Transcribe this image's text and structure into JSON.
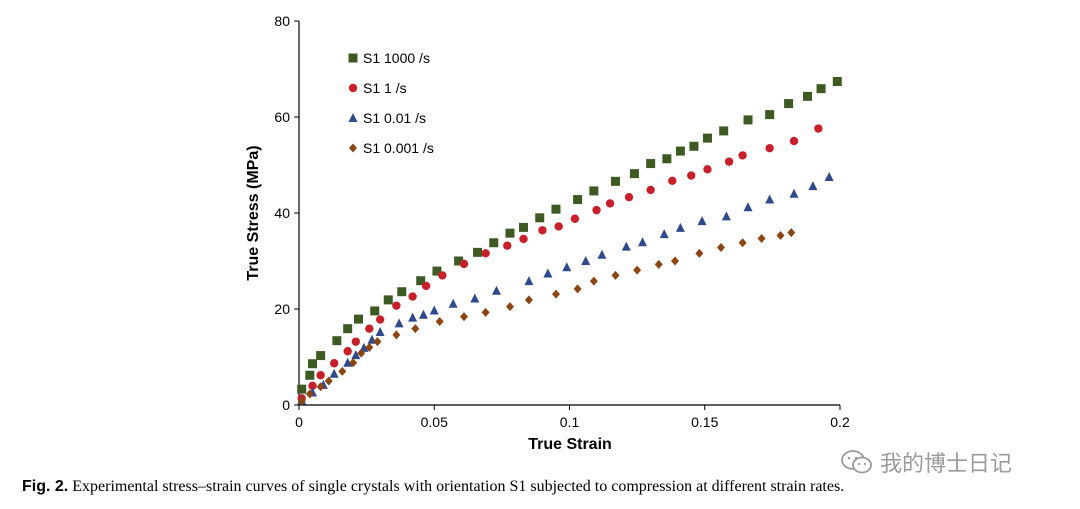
{
  "chart_data": {
    "type": "scatter",
    "title": "",
    "xlabel": "True Strain",
    "ylabel": "True Stress (MPa)",
    "xlim": [
      0,
      0.2
    ],
    "ylim": [
      0,
      80
    ],
    "xticks": [
      0,
      0.05,
      0.1,
      0.15,
      0.2
    ],
    "xtick_labels": [
      "0",
      "0.05",
      "0.1",
      "0.15",
      "0.2"
    ],
    "yticks": [
      0,
      20,
      40,
      60,
      80
    ],
    "ytick_labels": [
      "0",
      "20",
      "40",
      "60",
      "80"
    ],
    "grid": false,
    "legend_position": "top-left",
    "series": [
      {
        "name": "S1 1000 /s",
        "marker": "square",
        "color": "#3e5a23",
        "points": [
          [
            0.001,
            3.3
          ],
          [
            0.004,
            6.2
          ],
          [
            0.005,
            8.6
          ],
          [
            0.008,
            10.3
          ],
          [
            0.014,
            13.4
          ],
          [
            0.018,
            15.9
          ],
          [
            0.022,
            17.9
          ],
          [
            0.028,
            19.6
          ],
          [
            0.033,
            21.9
          ],
          [
            0.038,
            23.6
          ],
          [
            0.045,
            25.9
          ],
          [
            0.051,
            27.9
          ],
          [
            0.059,
            30.0
          ],
          [
            0.066,
            31.8
          ],
          [
            0.072,
            33.8
          ],
          [
            0.078,
            35.8
          ],
          [
            0.083,
            37.0
          ],
          [
            0.089,
            39.0
          ],
          [
            0.095,
            40.8
          ],
          [
            0.103,
            42.8
          ],
          [
            0.109,
            44.6
          ],
          [
            0.117,
            46.6
          ],
          [
            0.124,
            48.2
          ],
          [
            0.13,
            50.3
          ],
          [
            0.136,
            51.3
          ],
          [
            0.141,
            52.9
          ],
          [
            0.146,
            53.9
          ],
          [
            0.151,
            55.6
          ],
          [
            0.157,
            57.1
          ],
          [
            0.166,
            59.4
          ],
          [
            0.174,
            60.5
          ],
          [
            0.181,
            62.8
          ],
          [
            0.188,
            64.3
          ],
          [
            0.193,
            65.9
          ],
          [
            0.199,
            67.4
          ]
        ]
      },
      {
        "name": "S1 1 /s",
        "marker": "circle",
        "color": "#c8202a",
        "points": [
          [
            0.001,
            1.4
          ],
          [
            0.005,
            4.0
          ],
          [
            0.008,
            6.2
          ],
          [
            0.013,
            8.7
          ],
          [
            0.018,
            11.2
          ],
          [
            0.021,
            13.2
          ],
          [
            0.026,
            15.9
          ],
          [
            0.03,
            17.8
          ],
          [
            0.036,
            20.7
          ],
          [
            0.042,
            22.6
          ],
          [
            0.047,
            24.8
          ],
          [
            0.053,
            27.0
          ],
          [
            0.061,
            29.4
          ],
          [
            0.069,
            31.6
          ],
          [
            0.077,
            33.2
          ],
          [
            0.083,
            34.6
          ],
          [
            0.09,
            36.4
          ],
          [
            0.096,
            37.2
          ],
          [
            0.102,
            38.8
          ],
          [
            0.11,
            40.6
          ],
          [
            0.115,
            42.0
          ],
          [
            0.122,
            43.3
          ],
          [
            0.13,
            44.8
          ],
          [
            0.138,
            46.7
          ],
          [
            0.145,
            47.8
          ],
          [
            0.151,
            49.1
          ],
          [
            0.159,
            50.7
          ],
          [
            0.164,
            52.0
          ],
          [
            0.174,
            53.5
          ],
          [
            0.183,
            55.0
          ],
          [
            0.192,
            57.6
          ]
        ]
      },
      {
        "name": "S1 0.01 /s",
        "marker": "triangle",
        "color": "#2e4a8c",
        "points": [
          [
            0.001,
            0.9
          ],
          [
            0.005,
            2.6
          ],
          [
            0.009,
            4.2
          ],
          [
            0.013,
            6.5
          ],
          [
            0.018,
            8.8
          ],
          [
            0.021,
            10.4
          ],
          [
            0.024,
            11.9
          ],
          [
            0.027,
            13.6
          ],
          [
            0.03,
            15.2
          ],
          [
            0.037,
            17.0
          ],
          [
            0.042,
            18.2
          ],
          [
            0.046,
            18.8
          ],
          [
            0.05,
            19.7
          ],
          [
            0.057,
            21.1
          ],
          [
            0.065,
            22.2
          ],
          [
            0.073,
            23.8
          ],
          [
            0.085,
            25.8
          ],
          [
            0.092,
            27.4
          ],
          [
            0.099,
            28.7
          ],
          [
            0.106,
            30.0
          ],
          [
            0.112,
            31.3
          ],
          [
            0.121,
            33.0
          ],
          [
            0.127,
            33.9
          ],
          [
            0.135,
            35.6
          ],
          [
            0.141,
            36.9
          ],
          [
            0.149,
            38.3
          ],
          [
            0.158,
            39.3
          ],
          [
            0.166,
            41.2
          ],
          [
            0.174,
            42.8
          ],
          [
            0.183,
            44.0
          ],
          [
            0.19,
            45.6
          ],
          [
            0.196,
            47.5
          ]
        ]
      },
      {
        "name": "S1 0.001 /s",
        "marker": "diamond",
        "color": "#8b4513",
        "points": [
          [
            0.001,
            0.8
          ],
          [
            0.004,
            2.3
          ],
          [
            0.008,
            3.8
          ],
          [
            0.011,
            5.0
          ],
          [
            0.016,
            7.0
          ],
          [
            0.02,
            8.8
          ],
          [
            0.023,
            10.8
          ],
          [
            0.026,
            12.0
          ],
          [
            0.029,
            13.2
          ],
          [
            0.036,
            14.6
          ],
          [
            0.043,
            15.9
          ],
          [
            0.052,
            17.4
          ],
          [
            0.061,
            18.4
          ],
          [
            0.069,
            19.3
          ],
          [
            0.078,
            20.5
          ],
          [
            0.085,
            21.9
          ],
          [
            0.095,
            23.1
          ],
          [
            0.103,
            24.2
          ],
          [
            0.109,
            25.8
          ],
          [
            0.117,
            27.0
          ],
          [
            0.125,
            28.1
          ],
          [
            0.133,
            29.3
          ],
          [
            0.139,
            30.0
          ],
          [
            0.148,
            31.6
          ],
          [
            0.156,
            32.8
          ],
          [
            0.164,
            33.8
          ],
          [
            0.171,
            34.7
          ],
          [
            0.178,
            35.3
          ],
          [
            0.182,
            35.9
          ]
        ]
      }
    ]
  },
  "caption": {
    "label": "Fig. 2.",
    "text": "Experimental stress–strain curves of single crystals with orientation S1 subjected to compression at different strain rates."
  },
  "watermark": {
    "text": "我的博士日记",
    "icon": "wechat-icon"
  }
}
